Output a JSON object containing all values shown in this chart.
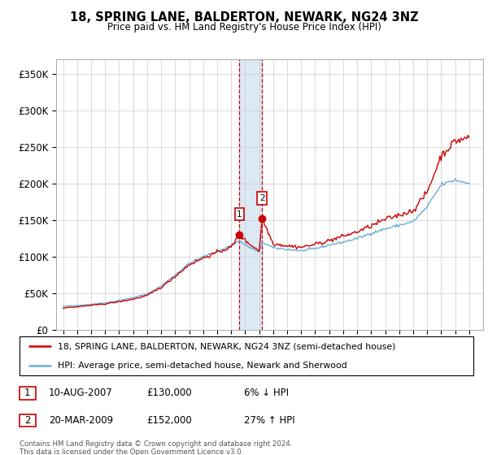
{
  "title": "18, SPRING LANE, BALDERTON, NEWARK, NG24 3NZ",
  "subtitle": "Price paid vs. HM Land Registry's House Price Index (HPI)",
  "legend_line1": "18, SPRING LANE, BALDERTON, NEWARK, NG24 3NZ (semi-detached house)",
  "legend_line2": "HPI: Average price, semi-detached house, Newark and Sherwood",
  "footer": "Contains HM Land Registry data © Crown copyright and database right 2024.\nThis data is licensed under the Open Government Licence v3.0.",
  "sale1_label": "1",
  "sale1_date": "10-AUG-2007",
  "sale1_price": "£130,000",
  "sale1_hpi": "6% ↓ HPI",
  "sale2_label": "2",
  "sale2_date": "20-MAR-2009",
  "sale2_price": "£152,000",
  "sale2_hpi": "27% ↑ HPI",
  "hpi_color": "#6baed6",
  "sale_color": "#cc0000",
  "highlight_color": "#dce9f5",
  "ylim": [
    0,
    370000
  ],
  "yticks": [
    0,
    50000,
    100000,
    150000,
    200000,
    250000,
    300000,
    350000
  ],
  "ytick_labels": [
    "£0",
    "£50K",
    "£100K",
    "£150K",
    "£200K",
    "£250K",
    "£300K",
    "£350K"
  ],
  "sale1_year": 2007.6,
  "sale1_value": 130000,
  "sale2_year": 2009.22,
  "sale2_value": 152000,
  "xmin": 1994.5,
  "xmax": 2025.0
}
